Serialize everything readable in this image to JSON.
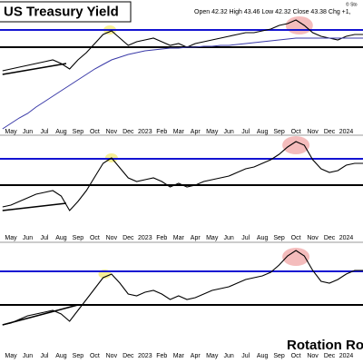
{
  "chart_data": [
    {
      "type": "line",
      "title": "US Treasury Yield",
      "subtitle": "Open 42.32 High 43.46 Low 42.32 Close 43.38 Chg +1,",
      "credit": "© Sto",
      "x": [
        -0.5,
        0,
        0.5,
        1,
        1.5,
        2,
        2.5,
        3,
        3.5,
        4,
        4.5,
        5,
        5.5,
        6,
        6.5,
        7,
        7.5,
        8,
        8.5,
        9,
        9.5,
        10,
        10.5,
        11,
        11.5,
        12,
        12.5,
        13,
        13.5,
        14,
        14.5,
        15,
        15.5,
        16,
        16.5,
        17,
        17.5,
        18,
        18.5,
        19,
        19.5,
        20,
        20.5,
        21
      ],
      "xlim": [
        -0.65,
        21
      ],
      "ylim": [
        0,
        148
      ],
      "xticks": [
        {
          "value": 0,
          "label": "May"
        },
        {
          "value": 1,
          "label": "Jun"
        },
        {
          "value": 2,
          "label": "Jul"
        },
        {
          "value": 3,
          "label": "Aug"
        },
        {
          "value": 4,
          "label": "Sep"
        },
        {
          "value": 5,
          "label": "Oct"
        },
        {
          "value": 6,
          "label": "Nov"
        },
        {
          "value": 7,
          "label": "Dec"
        },
        {
          "value": 8,
          "label": "2023"
        },
        {
          "value": 9,
          "label": "Feb"
        },
        {
          "value": 10,
          "label": "Mar"
        },
        {
          "value": 11,
          "label": "Apr"
        },
        {
          "value": 12,
          "label": "May"
        },
        {
          "value": 13,
          "label": "Jun"
        },
        {
          "value": 14,
          "label": "Jul"
        },
        {
          "value": 15,
          "label": "Aug"
        },
        {
          "value": 16,
          "label": "Sep"
        },
        {
          "value": 17,
          "label": "Oct"
        },
        {
          "value": 18,
          "label": "Nov"
        },
        {
          "value": 19,
          "label": "Dec"
        },
        {
          "value": 20,
          "label": "2024"
        }
      ],
      "series": [
        {
          "color": "#000000",
          "values": [
            70,
            72,
            74,
            76,
            78,
            80,
            82,
            78,
            72,
            82,
            90,
            100,
            110,
            114,
            106,
            98,
            102,
            104,
            106,
            102,
            98,
            100,
            96,
            100,
            102,
            104,
            106,
            108,
            110,
            112,
            112,
            114,
            116,
            120,
            122,
            126,
            120,
            112,
            108,
            106,
            104,
            108,
            110,
            110
          ]
        },
        {
          "color": "#3a3aa8",
          "values": [
            6,
            12,
            18,
            23,
            30,
            36,
            42,
            48,
            54,
            60,
            66,
            72,
            77,
            82,
            85,
            88,
            90,
            92,
            93,
            94,
            95,
            95,
            96,
            96,
            97,
            97,
            98,
            98,
            99,
            100,
            101,
            102,
            103,
            104,
            105,
            106,
            106,
            106,
            106,
            106,
            106,
            106,
            106,
            106
          ]
        }
      ],
      "hlines": [
        {
          "value": 115,
          "color": "#1414d2"
        },
        {
          "value": 96,
          "color": "#000000"
        }
      ],
      "trendlines": [
        {
          "x": [
            -0.5,
            3.3
          ],
          "values": [
            66,
            78
          ]
        }
      ],
      "highlights": [
        {
          "x": 5.9,
          "y": 115,
          "color": "#f3e86a"
        },
        {
          "x": 17.2,
          "y": 120,
          "color": "#f0a0a0"
        }
      ]
    },
    {
      "type": "line",
      "x": [
        -0.5,
        0,
        0.5,
        1,
        1.5,
        2,
        2.5,
        3,
        3.5,
        4,
        4.5,
        5,
        5.5,
        6,
        6.5,
        7,
        7.5,
        8,
        8.5,
        9,
        9.5,
        10,
        10.5,
        11,
        11.5,
        12,
        12.5,
        13,
        13.5,
        14,
        14.5,
        15,
        15.5,
        16,
        16.5,
        17,
        17.5,
        18,
        18.5,
        19,
        19.5,
        20,
        20.5,
        21
      ],
      "xlim": [
        -0.65,
        21
      ],
      "ylim": [
        0,
        115
      ],
      "xticks": [
        {
          "value": 0,
          "label": "May"
        },
        {
          "value": 1,
          "label": "Jun"
        },
        {
          "value": 2,
          "label": "Jul"
        },
        {
          "value": 3,
          "label": "Aug"
        },
        {
          "value": 4,
          "label": "Sep"
        },
        {
          "value": 5,
          "label": "Oct"
        },
        {
          "value": 6,
          "label": "Nov"
        },
        {
          "value": 7,
          "label": "Dec"
        },
        {
          "value": 8,
          "label": "2023"
        },
        {
          "value": 9,
          "label": "Feb"
        },
        {
          "value": 10,
          "label": "Mar"
        },
        {
          "value": 11,
          "label": "Apr"
        },
        {
          "value": 12,
          "label": "May"
        },
        {
          "value": 13,
          "label": "Jun"
        },
        {
          "value": 14,
          "label": "Jul"
        },
        {
          "value": 15,
          "label": "Aug"
        },
        {
          "value": 16,
          "label": "Sep"
        },
        {
          "value": 17,
          "label": "Oct"
        },
        {
          "value": 18,
          "label": "Nov"
        },
        {
          "value": 19,
          "label": "Dec"
        },
        {
          "value": 20,
          "label": "2024"
        }
      ],
      "series": [
        {
          "color": "#000000",
          "values": [
            37,
            39,
            43,
            47,
            51,
            53,
            55,
            49,
            33,
            43,
            55,
            70,
            85,
            91,
            80,
            69,
            65,
            67,
            69,
            65,
            59,
            63,
            59,
            61,
            65,
            67,
            69,
            71,
            75,
            79,
            81,
            85,
            89,
            95,
            103,
            109,
            105,
            89,
            79,
            75,
            77,
            83,
            85,
            85
          ]
        }
      ],
      "hlines": [
        {
          "value": 90,
          "color": "#1414d2"
        },
        {
          "value": 61,
          "color": "#000000"
        }
      ],
      "trendlines": [
        {
          "x": [
            -0.5,
            3.3
          ],
          "values": [
            33,
            41
          ]
        }
      ],
      "highlights": [
        {
          "x": 6,
          "y": 91,
          "color": "#f3e86a"
        },
        {
          "x": 17,
          "y": 105,
          "color": "#f0a0a0"
        }
      ]
    },
    {
      "type": "line",
      "annotation": "Rotation Ro",
      "x": [
        -0.5,
        0,
        0.5,
        1,
        1.5,
        2,
        2.5,
        3,
        3.5,
        4,
        4.5,
        5,
        5.5,
        6,
        6.5,
        7,
        7.5,
        8,
        8.5,
        9,
        9.5,
        10,
        10.5,
        11,
        11.5,
        12,
        12.5,
        13,
        13.5,
        14,
        14.5,
        15,
        15.5,
        16,
        16.5,
        17,
        17.5,
        18,
        18.5,
        19,
        19.5,
        20,
        20.5,
        21
      ],
      "xlim": [
        -0.65,
        21
      ],
      "ylim": [
        0,
        127
      ],
      "xticks": [
        {
          "value": 0,
          "label": "May"
        },
        {
          "value": 1,
          "label": "Jun"
        },
        {
          "value": 2,
          "label": "Jul"
        },
        {
          "value": 3,
          "label": "Aug"
        },
        {
          "value": 4,
          "label": "Sep"
        },
        {
          "value": 5,
          "label": "Oct"
        },
        {
          "value": 6,
          "label": "Nov"
        },
        {
          "value": 7,
          "label": "Dec"
        },
        {
          "value": 8,
          "label": "2023"
        },
        {
          "value": 9,
          "label": "Feb"
        },
        {
          "value": 10,
          "label": "Mar"
        },
        {
          "value": 11,
          "label": "Apr"
        },
        {
          "value": 12,
          "label": "May"
        },
        {
          "value": 13,
          "label": "Jun"
        },
        {
          "value": 14,
          "label": "Jul"
        },
        {
          "value": 15,
          "label": "Aug"
        },
        {
          "value": 16,
          "label": "Sep"
        },
        {
          "value": 17,
          "label": "Oct"
        },
        {
          "value": 18,
          "label": "Nov"
        },
        {
          "value": 19,
          "label": "Dec"
        },
        {
          "value": 20,
          "label": "2024"
        }
      ],
      "series": [
        {
          "color": "#000000",
          "values": [
            37,
            39,
            43,
            47,
            49,
            51,
            53,
            49,
            41,
            53,
            65,
            77,
            89,
            93,
            83,
            71,
            69,
            73,
            75,
            71,
            65,
            69,
            65,
            67,
            71,
            75,
            77,
            79,
            83,
            87,
            89,
            91,
            95,
            103,
            113,
            119,
            113,
            97,
            85,
            83,
            87,
            93,
            97,
            97
          ]
        }
      ],
      "hlines": [
        {
          "value": 96,
          "color": "#1414d2"
        },
        {
          "value": 59,
          "color": "#000000"
        }
      ],
      "trendlines": [
        {
          "x": [
            -0.5,
            4
          ],
          "values": [
            37,
            59
          ]
        }
      ],
      "highlights": [
        {
          "x": 5.6,
          "y": 93,
          "color": "#f3e86a"
        },
        {
          "x": 17,
          "y": 112,
          "color": "#f0a0a0"
        }
      ]
    }
  ]
}
